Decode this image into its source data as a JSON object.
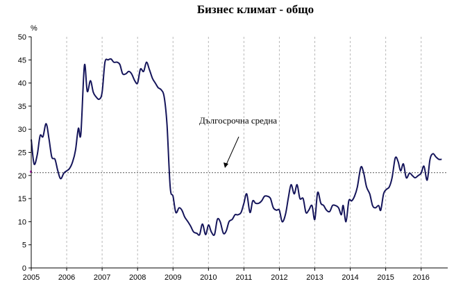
{
  "chart_data": {
    "type": "line",
    "title": "Бизнес климат - общо",
    "ylabel": "%",
    "xlabel": "",
    "ylim": [
      0,
      50
    ],
    "yticks": [
      0,
      5,
      10,
      15,
      20,
      25,
      30,
      35,
      40,
      45,
      50
    ],
    "xticks": [
      "2005",
      "2006",
      "2007",
      "2008",
      "2009",
      "2010",
      "2011",
      "2012",
      "2013",
      "2014",
      "2015",
      "2016"
    ],
    "grid": "vertical-dashed",
    "series": [
      {
        "color": "#14145a",
        "values": [
          {
            "x": 2005.0,
            "y": 27.8
          },
          {
            "x": 2005.08,
            "y": 22.5
          },
          {
            "x": 2005.17,
            "y": 24.5
          },
          {
            "x": 2005.25,
            "y": 28.6
          },
          {
            "x": 2005.33,
            "y": 28.4
          },
          {
            "x": 2005.42,
            "y": 31.2
          },
          {
            "x": 2005.5,
            "y": 28.0
          },
          {
            "x": 2005.58,
            "y": 24.0
          },
          {
            "x": 2005.67,
            "y": 23.5
          },
          {
            "x": 2005.75,
            "y": 21.0
          },
          {
            "x": 2005.83,
            "y": 19.3
          },
          {
            "x": 2005.92,
            "y": 20.5
          },
          {
            "x": 2006.0,
            "y": 21.0
          },
          {
            "x": 2006.08,
            "y": 21.5
          },
          {
            "x": 2006.17,
            "y": 23.0
          },
          {
            "x": 2006.25,
            "y": 25.5
          },
          {
            "x": 2006.33,
            "y": 30.2
          },
          {
            "x": 2006.4,
            "y": 29.0
          },
          {
            "x": 2006.5,
            "y": 43.8
          },
          {
            "x": 2006.58,
            "y": 38.2
          },
          {
            "x": 2006.67,
            "y": 40.5
          },
          {
            "x": 2006.75,
            "y": 38.0
          },
          {
            "x": 2006.83,
            "y": 37.0
          },
          {
            "x": 2006.92,
            "y": 36.5
          },
          {
            "x": 2007.0,
            "y": 38.0
          },
          {
            "x": 2007.08,
            "y": 44.5
          },
          {
            "x": 2007.17,
            "y": 45.0
          },
          {
            "x": 2007.25,
            "y": 45.2
          },
          {
            "x": 2007.33,
            "y": 44.5
          },
          {
            "x": 2007.42,
            "y": 44.5
          },
          {
            "x": 2007.5,
            "y": 44.0
          },
          {
            "x": 2007.58,
            "y": 42.0
          },
          {
            "x": 2007.67,
            "y": 42.0
          },
          {
            "x": 2007.75,
            "y": 42.5
          },
          {
            "x": 2007.83,
            "y": 42.0
          },
          {
            "x": 2007.92,
            "y": 40.5
          },
          {
            "x": 2008.0,
            "y": 40.0
          },
          {
            "x": 2008.08,
            "y": 43.0
          },
          {
            "x": 2008.17,
            "y": 42.5
          },
          {
            "x": 2008.25,
            "y": 44.5
          },
          {
            "x": 2008.33,
            "y": 43.0
          },
          {
            "x": 2008.42,
            "y": 41.0
          },
          {
            "x": 2008.5,
            "y": 40.0
          },
          {
            "x": 2008.58,
            "y": 39.0
          },
          {
            "x": 2008.67,
            "y": 38.5
          },
          {
            "x": 2008.75,
            "y": 37.0
          },
          {
            "x": 2008.83,
            "y": 31.0
          },
          {
            "x": 2008.92,
            "y": 17.5
          },
          {
            "x": 2009.0,
            "y": 15.5
          },
          {
            "x": 2009.08,
            "y": 12.0
          },
          {
            "x": 2009.17,
            "y": 13.0
          },
          {
            "x": 2009.25,
            "y": 12.5
          },
          {
            "x": 2009.33,
            "y": 11.0
          },
          {
            "x": 2009.42,
            "y": 10.0
          },
          {
            "x": 2009.5,
            "y": 9.0
          },
          {
            "x": 2009.58,
            "y": 7.8
          },
          {
            "x": 2009.67,
            "y": 7.5
          },
          {
            "x": 2009.75,
            "y": 7.2
          },
          {
            "x": 2009.83,
            "y": 9.5
          },
          {
            "x": 2009.92,
            "y": 7.2
          },
          {
            "x": 2010.0,
            "y": 9.3
          },
          {
            "x": 2010.08,
            "y": 7.8
          },
          {
            "x": 2010.17,
            "y": 7.2
          },
          {
            "x": 2010.25,
            "y": 10.5
          },
          {
            "x": 2010.33,
            "y": 10.0
          },
          {
            "x": 2010.42,
            "y": 7.5
          },
          {
            "x": 2010.5,
            "y": 8.0
          },
          {
            "x": 2010.58,
            "y": 10.0
          },
          {
            "x": 2010.67,
            "y": 10.5
          },
          {
            "x": 2010.75,
            "y": 11.5
          },
          {
            "x": 2010.83,
            "y": 11.5
          },
          {
            "x": 2010.92,
            "y": 12.0
          },
          {
            "x": 2011.0,
            "y": 14.0
          },
          {
            "x": 2011.08,
            "y": 16.0
          },
          {
            "x": 2011.17,
            "y": 12.0
          },
          {
            "x": 2011.25,
            "y": 14.5
          },
          {
            "x": 2011.33,
            "y": 14.0
          },
          {
            "x": 2011.42,
            "y": 14.0
          },
          {
            "x": 2011.5,
            "y": 14.5
          },
          {
            "x": 2011.58,
            "y": 15.5
          },
          {
            "x": 2011.67,
            "y": 15.5
          },
          {
            "x": 2011.75,
            "y": 15.0
          },
          {
            "x": 2011.83,
            "y": 13.0
          },
          {
            "x": 2011.92,
            "y": 12.5
          },
          {
            "x": 2012.0,
            "y": 12.5
          },
          {
            "x": 2012.08,
            "y": 10.0
          },
          {
            "x": 2012.17,
            "y": 11.5
          },
          {
            "x": 2012.25,
            "y": 15.0
          },
          {
            "x": 2012.33,
            "y": 18.0
          },
          {
            "x": 2012.42,
            "y": 16.0
          },
          {
            "x": 2012.5,
            "y": 18.0
          },
          {
            "x": 2012.58,
            "y": 15.0
          },
          {
            "x": 2012.67,
            "y": 15.0
          },
          {
            "x": 2012.75,
            "y": 12.0
          },
          {
            "x": 2012.83,
            "y": 12.5
          },
          {
            "x": 2012.92,
            "y": 13.5
          },
          {
            "x": 2013.0,
            "y": 10.5
          },
          {
            "x": 2013.08,
            "y": 16.3
          },
          {
            "x": 2013.17,
            "y": 14.0
          },
          {
            "x": 2013.25,
            "y": 13.5
          },
          {
            "x": 2013.33,
            "y": 12.5
          },
          {
            "x": 2013.42,
            "y": 12.2
          },
          {
            "x": 2013.5,
            "y": 13.5
          },
          {
            "x": 2013.58,
            "y": 13.5
          },
          {
            "x": 2013.67,
            "y": 13.0
          },
          {
            "x": 2013.75,
            "y": 11.5
          },
          {
            "x": 2013.8,
            "y": 13.5
          },
          {
            "x": 2013.88,
            "y": 10.0
          },
          {
            "x": 2013.96,
            "y": 14.5
          },
          {
            "x": 2014.04,
            "y": 14.5
          },
          {
            "x": 2014.12,
            "y": 15.5
          },
          {
            "x": 2014.2,
            "y": 17.5
          },
          {
            "x": 2014.3,
            "y": 21.8
          },
          {
            "x": 2014.38,
            "y": 20.5
          },
          {
            "x": 2014.46,
            "y": 17.5
          },
          {
            "x": 2014.55,
            "y": 16.0
          },
          {
            "x": 2014.63,
            "y": 13.5
          },
          {
            "x": 2014.71,
            "y": 13.0
          },
          {
            "x": 2014.8,
            "y": 13.5
          },
          {
            "x": 2014.86,
            "y": 12.5
          },
          {
            "x": 2014.94,
            "y": 16.0
          },
          {
            "x": 2015.02,
            "y": 17.0
          },
          {
            "x": 2015.1,
            "y": 17.5
          },
          {
            "x": 2015.18,
            "y": 19.5
          },
          {
            "x": 2015.27,
            "y": 23.8
          },
          {
            "x": 2015.35,
            "y": 23.0
          },
          {
            "x": 2015.42,
            "y": 21.0
          },
          {
            "x": 2015.5,
            "y": 22.5
          },
          {
            "x": 2015.58,
            "y": 19.5
          },
          {
            "x": 2015.67,
            "y": 20.5
          },
          {
            "x": 2015.75,
            "y": 20.0
          },
          {
            "x": 2015.83,
            "y": 19.5
          },
          {
            "x": 2015.92,
            "y": 20.0
          },
          {
            "x": 2016.0,
            "y": 20.5
          },
          {
            "x": 2016.08,
            "y": 22.0
          },
          {
            "x": 2016.17,
            "y": 19.0
          },
          {
            "x": 2016.25,
            "y": 23.5
          },
          {
            "x": 2016.33,
            "y": 24.7
          },
          {
            "x": 2016.42,
            "y": 24.0
          },
          {
            "x": 2016.5,
            "y": 23.5
          },
          {
            "x": 2016.58,
            "y": 23.5
          }
        ]
      }
    ],
    "reference_line": {
      "value": 20.6,
      "label": "Дългосрочна средна",
      "style": "dotted"
    }
  }
}
